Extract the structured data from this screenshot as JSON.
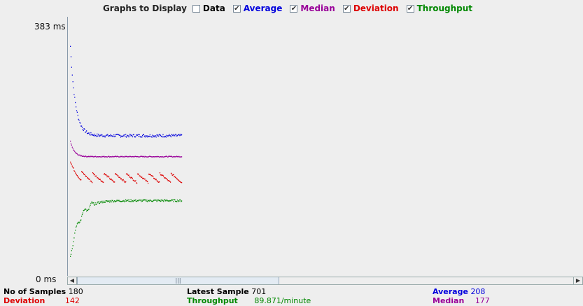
{
  "legend": {
    "title": "Graphs to Display",
    "items": [
      {
        "label": "Data",
        "checked": false,
        "color": "#000000"
      },
      {
        "label": "Average",
        "checked": true,
        "color": "#0000dd"
      },
      {
        "label": "Median",
        "checked": true,
        "color": "#990099"
      },
      {
        "label": "Deviation",
        "checked": true,
        "color": "#dd0000"
      },
      {
        "label": "Throughput",
        "checked": true,
        "color": "#008800"
      }
    ]
  },
  "axis": {
    "y_top": "383 ms",
    "y_bottom": "0 ms"
  },
  "scrollbar": {
    "thumb_grip": "|||",
    "left_arrow": "◀",
    "right_arrow": "▶"
  },
  "stats": {
    "samples_label": "No of Samples",
    "samples_value": "180",
    "deviation_label": "Deviation",
    "deviation_value": "142",
    "latest_label": "Latest Sample",
    "latest_value": "701",
    "throughput_label": "Throughput",
    "throughput_value": "89.871/minute",
    "average_label": "Average",
    "average_value": "208",
    "median_label": "Median",
    "median_value": "177"
  },
  "colors": {
    "average": "#0000dd",
    "median": "#990099",
    "deviation": "#dd0000",
    "throughput": "#008800"
  },
  "chart_data": {
    "type": "scatter",
    "ylim": [
      0,
      383
    ],
    "sample_count": 180,
    "series": [
      {
        "name": "Average",
        "steady_value": 208
      },
      {
        "name": "Median",
        "steady_value": 177
      },
      {
        "name": "Deviation",
        "steady_value": 142
      },
      {
        "name": "Throughput"
      }
    ]
  }
}
